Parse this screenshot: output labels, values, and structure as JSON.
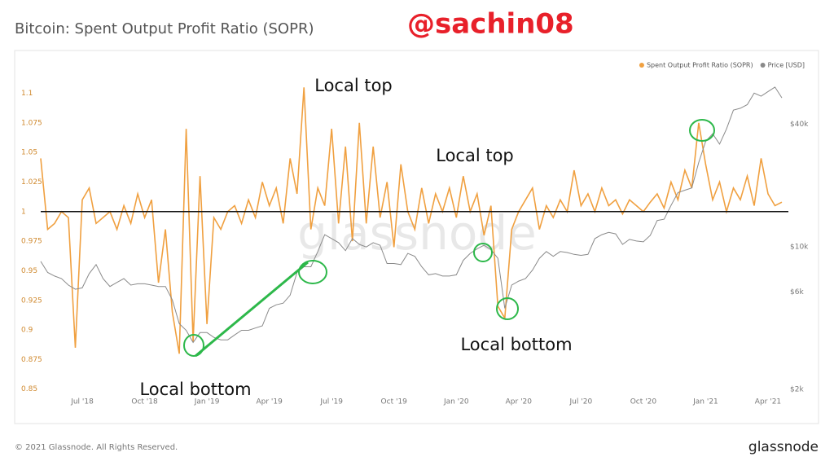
{
  "header": {
    "title": "Bitcoin: Spent Output Profit Ratio (SOPR)",
    "handle": "@sachin08"
  },
  "footer": {
    "copyright": "© 2021 Glassnode. All Rights Reserved.",
    "brand": "glassnode"
  },
  "chart_data": {
    "type": "line",
    "watermark": "glassnode",
    "categories": [
      null,
      null,
      null,
      null,
      null,
      null,
      "Jul '18",
      null,
      null,
      null,
      null,
      null,
      null,
      null,
      null,
      "Oct '18",
      null,
      null,
      null,
      null,
      null,
      null,
      null,
      null,
      "Jan '19",
      null,
      null,
      null,
      null,
      null,
      null,
      null,
      null,
      "Apr '19",
      null,
      null,
      null,
      null,
      null,
      null,
      null,
      null,
      "Jul '19",
      null,
      null,
      null,
      null,
      null,
      null,
      null,
      null,
      "Oct '19",
      null,
      null,
      null,
      null,
      null,
      null,
      null,
      null,
      "Jan '20",
      null,
      null,
      null,
      null,
      null,
      null,
      null,
      null,
      "Apr '20",
      null,
      null,
      null,
      null,
      null,
      null,
      null,
      null,
      "Jul '20",
      null,
      null,
      null,
      null,
      null,
      null,
      null,
      null,
      "Oct '20",
      null,
      null,
      null,
      null,
      null,
      null,
      null,
      null,
      "Jan '21",
      null,
      null,
      null,
      null,
      null,
      null,
      null,
      null,
      "Apr '21",
      null,
      null
    ],
    "series": [
      {
        "name": "Spent Output Profit Ratio (SOPR)",
        "color": "#f0a040",
        "values": [
          1.045,
          0.985,
          0.99,
          1.0,
          0.995,
          0.885,
          1.01,
          1.02,
          0.99,
          0.995,
          1.0,
          0.985,
          1.005,
          0.99,
          1.015,
          0.995,
          1.01,
          0.94,
          0.985,
          0.915,
          0.88,
          1.07,
          0.89,
          1.03,
          0.905,
          0.995,
          0.985,
          1.0,
          1.005,
          0.99,
          1.01,
          0.995,
          1.025,
          1.005,
          1.02,
          0.99,
          1.045,
          1.015,
          1.105,
          0.985,
          1.02,
          1.005,
          1.07,
          0.99,
          1.055,
          0.975,
          1.075,
          0.99,
          1.055,
          0.995,
          1.025,
          0.97,
          1.04,
          1.0,
          0.985,
          1.02,
          0.99,
          1.015,
          1.0,
          1.02,
          0.995,
          1.03,
          1.0,
          1.015,
          0.98,
          1.005,
          0.92,
          0.91,
          0.985,
          1.0,
          1.01,
          1.02,
          0.985,
          1.005,
          0.995,
          1.01,
          1.0,
          1.035,
          1.005,
          1.015,
          1.0,
          1.02,
          1.005,
          1.01,
          0.998,
          1.01,
          1.005,
          1.0,
          1.008,
          1.015,
          1.003,
          1.025,
          1.01,
          1.035,
          1.02,
          1.075,
          1.04,
          1.01,
          1.025,
          1.0,
          1.02,
          1.01,
          1.03,
          1.005,
          1.045,
          1.015,
          1.005,
          1.008
        ]
      },
      {
        "name": "Price [USD]",
        "color": "#8a8a8a",
        "axis": "y2",
        "values": [
          8500,
          7500,
          7200,
          7000,
          6500,
          6200,
          6300,
          7400,
          8200,
          7000,
          6400,
          6700,
          7000,
          6500,
          6600,
          6600,
          6500,
          6400,
          6400,
          5500,
          4200,
          3900,
          3400,
          3800,
          3800,
          3600,
          3500,
          3500,
          3700,
          3900,
          3900,
          4000,
          4100,
          5000,
          5200,
          5300,
          5800,
          7500,
          8000,
          8000,
          9500,
          11500,
          11000,
          10500,
          9600,
          11000,
          10300,
          10000,
          10500,
          10200,
          8300,
          8300,
          8200,
          9300,
          9000,
          8000,
          7300,
          7400,
          7200,
          7200,
          7300,
          8600,
          9300,
          9800,
          10200,
          9700,
          8800,
          5000,
          6500,
          6800,
          7000,
          7700,
          8800,
          9500,
          9000,
          9500,
          9400,
          9200,
          9100,
          9200,
          11000,
          11500,
          11800,
          11600,
          10300,
          10900,
          10700,
          10600,
          11400,
          13500,
          13700,
          16000,
          18500,
          19000,
          19500,
          26000,
          33000,
          36000,
          32000,
          38000,
          47000,
          48000,
          50000,
          57000,
          55000,
          58000,
          61000,
          54000
        ]
      }
    ],
    "ylim": [
      0.845,
      1.11
    ],
    "yticks": [
      0.85,
      0.875,
      0.9,
      0.925,
      0.95,
      0.975,
      1,
      1.025,
      1.05,
      1.075,
      1.1
    ],
    "y2lim": [
      1875,
      65000
    ],
    "y2_log": true,
    "y2ticks": [
      {
        "value": 2000,
        "label": "$2k"
      },
      {
        "value": 6000,
        "label": "$6k"
      },
      {
        "value": 10000,
        "label": "$10k"
      },
      {
        "value": 40000,
        "label": "$40k"
      }
    ],
    "reference_line": 1,
    "legend": "top-right",
    "annotations": [
      "Local top",
      "Local top",
      "Local bottom",
      "Local bottom"
    ]
  }
}
